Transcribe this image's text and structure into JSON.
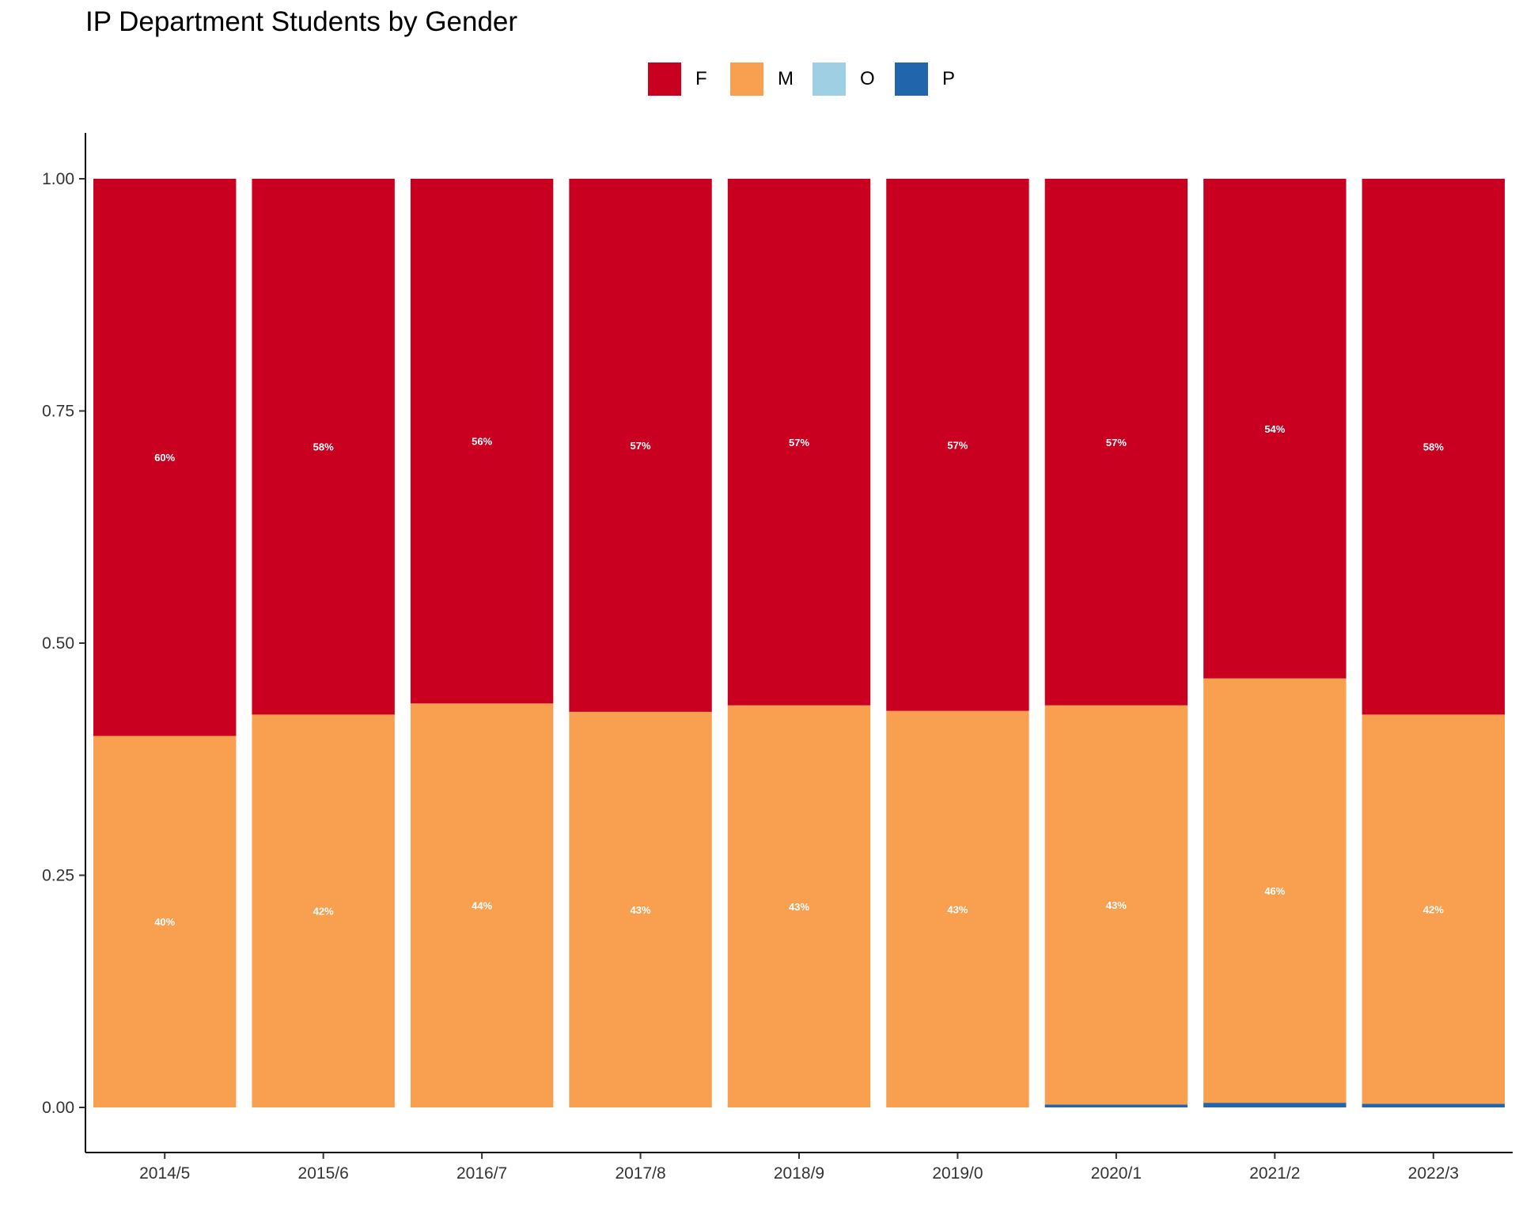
{
  "chart_data": {
    "type": "bar",
    "stacked": true,
    "title": "IP Department Students by Gender",
    "xlabel": "",
    "ylabel": "",
    "ylim": [
      -0.05,
      1.05
    ],
    "yticks": [
      "0.00",
      "0.25",
      "0.50",
      "0.75",
      "1.00"
    ],
    "ytick_values": [
      0,
      0.25,
      0.5,
      0.75,
      1.0
    ],
    "legend_position": "top",
    "grid": false,
    "categories": [
      "2014/5",
      "2015/6",
      "2016/7",
      "2017/8",
      "2018/9",
      "2019/0",
      "2020/1",
      "2021/2",
      "2022/3"
    ],
    "series": [
      {
        "name": "F",
        "color": "#ca0020",
        "values": [
          0.6,
          0.577,
          0.565,
          0.574,
          0.567,
          0.573,
          0.567,
          0.538,
          0.577
        ],
        "labels": [
          "60%",
          "58%",
          "56%",
          "57%",
          "57%",
          "57%",
          "57%",
          "54%",
          "58%"
        ]
      },
      {
        "name": "M",
        "color": "#f99f50",
        "values": [
          0.4,
          0.423,
          0.435,
          0.426,
          0.433,
          0.427,
          0.43,
          0.457,
          0.419
        ],
        "labels": [
          "40%",
          "42%",
          "44%",
          "43%",
          "43%",
          "43%",
          "43%",
          "46%",
          "42%"
        ]
      },
      {
        "name": "O",
        "color": "#9ecfe3",
        "values": [
          0,
          0,
          0,
          0,
          0,
          0,
          0,
          0,
          0
        ],
        "labels": [
          "",
          "",
          "",
          "",
          "",
          "",
          "",
          "",
          ""
        ]
      },
      {
        "name": "P",
        "color": "#2166ac",
        "values": [
          0,
          0,
          0,
          0,
          0,
          0,
          0.003,
          0.005,
          0.004
        ],
        "labels": [
          "",
          "",
          "",
          "",
          "",
          "",
          "",
          "",
          ""
        ]
      }
    ]
  }
}
